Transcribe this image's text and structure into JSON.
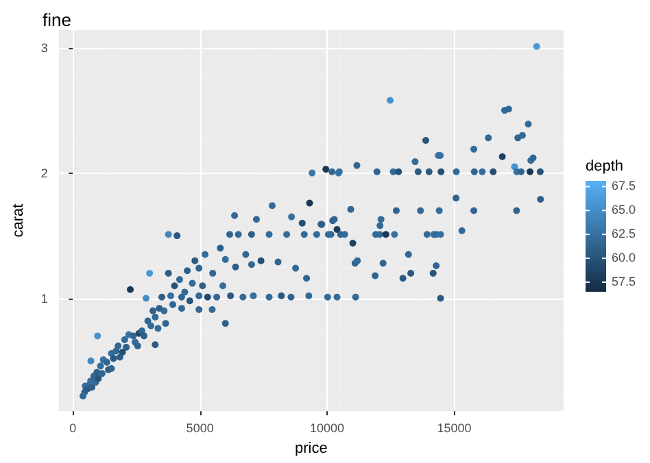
{
  "chart_data": {
    "type": "scatter",
    "title": "fine",
    "xlabel": "price",
    "ylabel": "carat",
    "clabel": "depth",
    "xlim": [
      -550,
      19300
    ],
    "xticks": [
      0,
      5000,
      10000,
      15000
    ],
    "ylim": [
      0.1,
      3.14
    ],
    "yticks": [
      1,
      2,
      3
    ],
    "clim": [
      56.5,
      68.1
    ],
    "cticks": [
      57.5,
      {
        "value": 60,
        "label": "60.0"
      },
      62.5,
      {
        "value": 65,
        "label": "65.0"
      },
      67.5
    ],
    "grid": true,
    "marker": "circle",
    "x": [
      400,
      460,
      520,
      490,
      600,
      660,
      700,
      750,
      830,
      900,
      950,
      1000,
      1090,
      1150,
      1200,
      1340,
      1400,
      1520,
      1520,
      1600,
      1700,
      1780,
      1850,
      1950,
      2040,
      2100,
      2200,
      2260,
      2380,
      2450,
      2550,
      2600,
      2720,
      2800,
      2880,
      2950,
      3020,
      3070,
      3150,
      3240,
      3240,
      3350,
      3400,
      3500,
      3590,
      3650,
      3760,
      3760,
      3850,
      3930,
      4000,
      4100,
      4200,
      4280,
      4280,
      4400,
      4500,
      4600,
      4700,
      4800,
      4960,
      4960,
      4960,
      5100,
      5200,
      5300,
      5480,
      5500,
      5660,
      5800,
      5900,
      6000,
      6000,
      6170,
      6200,
      6360,
      6400,
      6510,
      6690,
      6800,
      7030,
      7030,
      7100,
      7220,
      7400,
      7720,
      7720,
      7840,
      8070,
      8200,
      8410,
      8580,
      8600,
      8760,
      9020,
      9100,
      9190,
      9280,
      9310,
      9410,
      9590,
      9760,
      9790,
      9950,
      10020,
      10050,
      10150,
      10190,
      10220,
      10280,
      10390,
      10390,
      10450,
      10480,
      10530,
      10690,
      10930,
      11010,
      11100,
      11120,
      11170,
      11190,
      11890,
      11910,
      11960,
      12070,
      12080,
      12120,
      12200,
      12310,
      12480,
      12600,
      12650,
      12720,
      12810,
      12980,
      13200,
      13290,
      13460,
      13580,
      13670,
      13880,
      13930,
      14010,
      14170,
      14190,
      14290,
      14290,
      14370,
      14410,
      14450,
      14460,
      14460,
      14480,
      15070,
      15080,
      15300,
      15770,
      15770,
      15790,
      16100,
      16340,
      16530,
      16890,
      16980,
      17140,
      17370,
      17450,
      17460,
      17500,
      17630,
      17680,
      17910,
      17980,
      18010,
      18100,
      18240,
      18380,
      18390,
      970,
      710
    ],
    "values": [
      0.22,
      0.25,
      0.27,
      0.3,
      0.28,
      0.31,
      0.34,
      0.29,
      0.38,
      0.33,
      0.41,
      0.36,
      0.46,
      0.4,
      0.51,
      0.49,
      0.43,
      0.56,
      0.44,
      0.52,
      0.58,
      0.62,
      0.53,
      0.57,
      0.67,
      0.61,
      0.71,
      1.07,
      0.7,
      0.65,
      0.62,
      0.72,
      0.74,
      0.7,
      1.0,
      0.82,
      1.2,
      0.78,
      0.9,
      0.85,
      0.63,
      0.76,
      0.92,
      1.01,
      0.9,
      0.8,
      1.2,
      1.51,
      1.02,
      0.95,
      1.1,
      1.5,
      1.15,
      1.01,
      0.92,
      1.05,
      1.22,
      0.98,
      1.12,
      1.3,
      1.02,
      1.24,
      0.91,
      1.1,
      1.35,
      1.01,
      0.91,
      1.2,
      1.01,
      1.4,
      1.1,
      1.31,
      0.8,
      1.51,
      1.02,
      1.66,
      1.25,
      1.51,
      1.01,
      1.35,
      1.27,
      1.51,
      1.02,
      1.63,
      1.3,
      1.01,
      1.51,
      1.74,
      1.29,
      1.02,
      1.51,
      1.01,
      1.65,
      1.24,
      1.6,
      1.51,
      1.16,
      1.02,
      1.76,
      2.0,
      1.51,
      1.59,
      1.59,
      2.03,
      1.01,
      1.51,
      1.51,
      2.01,
      1.62,
      1.63,
      1.55,
      1.01,
      2.0,
      2.01,
      1.51,
      1.51,
      1.71,
      1.44,
      1.28,
      1.01,
      2.06,
      1.3,
      1.18,
      1.51,
      2.01,
      1.51,
      1.58,
      1.63,
      1.28,
      1.51,
      2.58,
      2.01,
      1.51,
      1.7,
      2.01,
      1.16,
      1.35,
      1.2,
      2.09,
      2.01,
      1.7,
      2.26,
      1.51,
      2.01,
      1.2,
      1.51,
      1.26,
      1.51,
      2.14,
      1.7,
      2.14,
      1.51,
      1.0,
      2.01,
      1.8,
      2.01,
      1.54,
      2.19,
      1.7,
      2.01,
      2.01,
      2.28,
      2.01,
      2.13,
      2.5,
      2.51,
      2.05,
      1.7,
      2.01,
      2.28,
      2.01,
      2.3,
      2.39,
      2.01,
      2.1,
      2.12,
      3.01,
      2.01,
      1.79,
      0.7,
      0.5
    ],
    "cvalues": [
      61.5,
      62,
      61,
      62,
      60.5,
      61.8,
      62.3,
      61,
      61.5,
      62,
      61,
      60,
      62,
      61.5,
      62.5,
      61.7,
      61,
      62,
      61.5,
      60.5,
      62,
      61.8,
      61,
      59.5,
      62,
      61.2,
      63,
      57.5,
      61.6,
      62,
      61.5,
      59,
      61.8,
      61,
      65,
      61.5,
      66,
      62,
      61.2,
      61.8,
      60.5,
      62,
      61,
      60.8,
      62,
      61.5,
      61,
      64.5,
      62.5,
      61.7,
      60,
      60.5,
      62,
      61.5,
      61.8,
      62,
      61,
      60,
      62,
      60.5,
      62,
      61.5,
      61.8,
      61,
      62,
      59,
      62,
      61.5,
      61.8,
      61,
      62.2,
      62,
      61,
      61.5,
      60.5,
      61.8,
      61,
      61.8,
      62,
      61.5,
      61.7,
      61,
      62.5,
      61.8,
      59.5,
      62,
      62,
      62,
      61.5,
      60.5,
      62,
      61.5,
      62.5,
      61.8,
      59.5,
      62,
      61.5,
      62,
      57.5,
      63,
      62,
      61.5,
      61,
      57.5,
      62,
      62,
      62,
      61.5,
      61,
      61.5,
      58,
      62,
      63,
      62.5,
      61.5,
      62,
      61.5,
      58.5,
      61.5,
      61.8,
      61.5,
      62,
      61.5,
      62,
      61.5,
      62,
      61.8,
      62,
      61.5,
      57.5,
      65.5,
      62,
      62.5,
      61.5,
      60,
      60.5,
      61.8,
      60.5,
      62,
      60.5,
      62,
      60,
      62,
      60.5,
      60,
      62.5,
      61.5,
      62,
      63,
      62,
      62.5,
      62.5,
      60.5,
      59.5,
      61.5,
      62,
      61.8,
      62,
      61.5,
      61.5,
      62,
      61.8,
      59.5,
      58.5,
      62,
      61.8,
      65.5,
      61.5,
      62.5,
      61.5,
      61.5,
      62,
      62,
      57.5,
      62,
      61.5,
      66,
      60,
      61,
      65.5,
      64.5
    ]
  }
}
